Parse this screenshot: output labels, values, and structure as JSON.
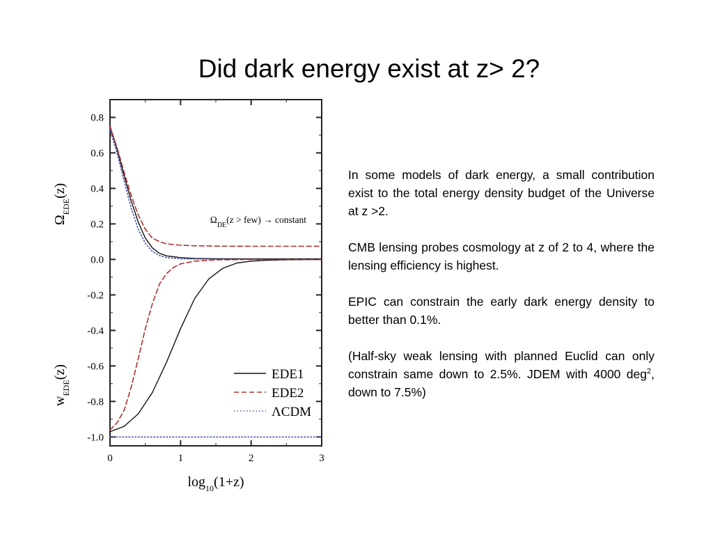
{
  "slide": {
    "title": "Did dark energy exist at z> 2?",
    "paragraphs": [
      "In some models of dark energy, a small contribution exist to the total energy density budget of the Universe at z >2.",
      "CMB lensing probes cosmology at z of 2 to 4, where the lensing efficiency is highest.",
      "EPIC can constrain the early dark energy density to better than 0.1%."
    ],
    "last_paragraph": {
      "before": "(Half-sky weak lensing with planned Euclid can only constrain same down to 2.5%. JDEM with 4000 deg",
      "sup": "2",
      "after": ", down to 7.5%)"
    }
  },
  "chart_data": {
    "type": "line",
    "xlabel": "log10(1+z)",
    "ylabel_top": "ΩEDE(z)",
    "ylabel_bottom": "wEDE(z)",
    "xlim": [
      0,
      3
    ],
    "ylim": [
      -1.05,
      0.9
    ],
    "xticks": [
      0,
      1,
      2,
      3
    ],
    "yticks": [
      0.8,
      0.6,
      0.4,
      0.2,
      0.0,
      -0.2,
      -0.4,
      -0.6,
      -0.8,
      -1.0
    ],
    "xtick_labels": [
      "0",
      "1",
      "2",
      "3"
    ],
    "ytick_labels": [
      "0.8",
      "0.6",
      "0.4",
      "0.2",
      "0.0",
      "-0.2",
      "-0.4",
      "-0.6",
      "-0.8",
      "-1.0"
    ],
    "annotation": "ΩDE(z > few) → constant",
    "legend_position": "bottom-right",
    "legend": [
      "EDE1",
      "EDE2",
      "ΛCDM"
    ],
    "series": [
      {
        "name": "EDE1",
        "panel": "omega",
        "style": "solid",
        "color": "#111111",
        "x": [
          0,
          0.1,
          0.2,
          0.3,
          0.4,
          0.5,
          0.6,
          0.7,
          0.8,
          1.0,
          1.2,
          1.5,
          2.0,
          2.5,
          3.0
        ],
        "y": [
          0.75,
          0.62,
          0.47,
          0.33,
          0.21,
          0.12,
          0.065,
          0.035,
          0.02,
          0.01,
          0.006,
          0.004,
          0.003,
          0.003,
          0.003
        ]
      },
      {
        "name": "EDE2",
        "panel": "omega",
        "style": "dashed",
        "color": "#b03030",
        "x": [
          0,
          0.1,
          0.2,
          0.3,
          0.4,
          0.5,
          0.6,
          0.7,
          0.8,
          1.0,
          1.2,
          1.5,
          2.0,
          2.5,
          3.0
        ],
        "y": [
          0.75,
          0.63,
          0.49,
          0.36,
          0.25,
          0.17,
          0.12,
          0.1,
          0.088,
          0.08,
          0.077,
          0.075,
          0.074,
          0.074,
          0.074
        ]
      },
      {
        "name": "ΛCDM",
        "panel": "omega",
        "style": "dotted",
        "color": "#4455aa",
        "x": [
          0,
          0.1,
          0.2,
          0.3,
          0.4,
          0.5,
          0.6,
          0.7,
          0.8,
          1.0,
          1.5,
          2.0,
          3.0
        ],
        "y": [
          0.73,
          0.6,
          0.44,
          0.29,
          0.17,
          0.09,
          0.045,
          0.022,
          0.01,
          0.003,
          0.001,
          0.0,
          0.0
        ]
      },
      {
        "name": "EDE1",
        "panel": "w",
        "style": "solid",
        "color": "#111111",
        "x": [
          0,
          0.2,
          0.4,
          0.6,
          0.8,
          1.0,
          1.2,
          1.4,
          1.6,
          1.8,
          2.0,
          2.2,
          2.5,
          3.0
        ],
        "y": [
          -0.97,
          -0.94,
          -0.87,
          -0.75,
          -0.58,
          -0.39,
          -0.22,
          -0.11,
          -0.05,
          -0.02,
          -0.01,
          -0.005,
          -0.002,
          0.0
        ]
      },
      {
        "name": "EDE2",
        "panel": "w",
        "style": "dashed",
        "color": "#b03030",
        "x": [
          0,
          0.1,
          0.2,
          0.3,
          0.4,
          0.5,
          0.6,
          0.7,
          0.8,
          0.9,
          1.0,
          1.2,
          1.5,
          2.0,
          3.0
        ],
        "y": [
          -0.96,
          -0.92,
          -0.85,
          -0.72,
          -0.56,
          -0.39,
          -0.25,
          -0.14,
          -0.08,
          -0.045,
          -0.025,
          -0.01,
          -0.003,
          0.0,
          0.0
        ]
      },
      {
        "name": "ΛCDM",
        "panel": "w",
        "style": "dotted",
        "color": "#4455aa",
        "x": [
          0,
          3
        ],
        "y": [
          -1.0,
          -1.0
        ]
      }
    ]
  }
}
